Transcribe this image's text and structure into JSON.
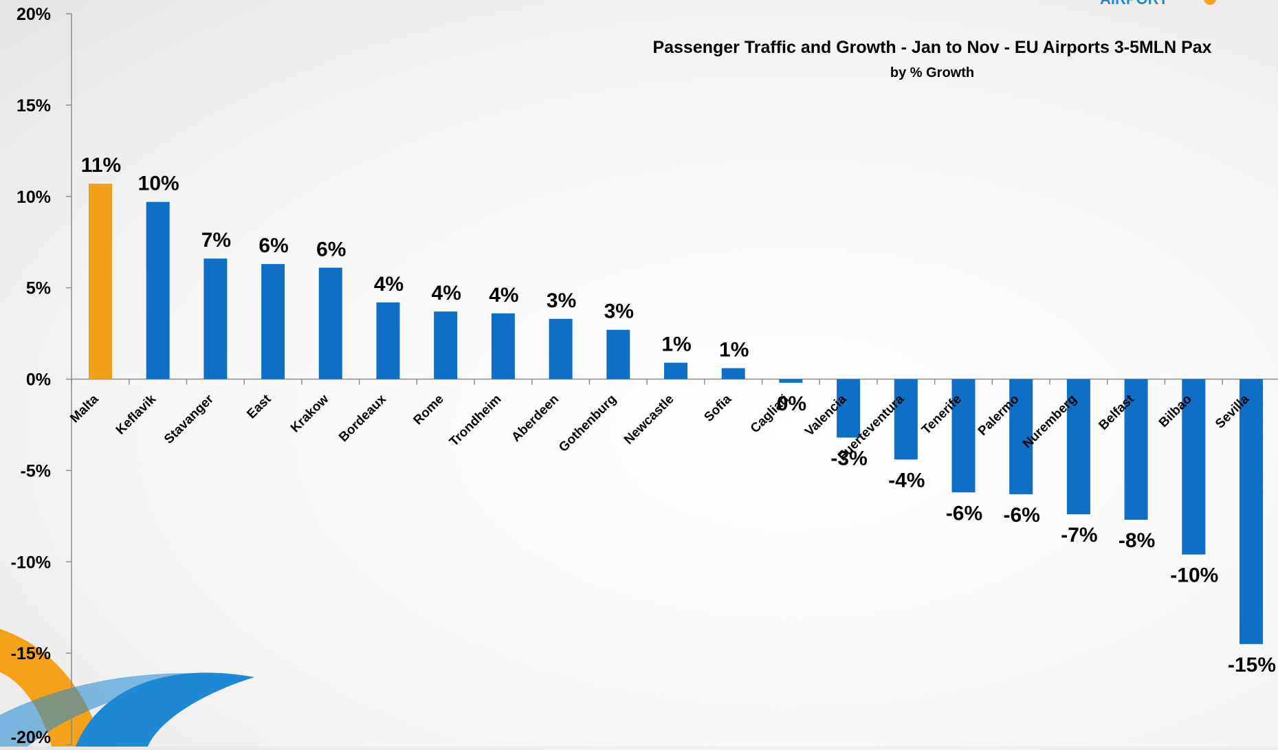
{
  "chart_data": {
    "type": "bar",
    "title": "Passenger Traffic and Growth - Jan to Nov - EU Airports  3-5MLN Pax",
    "subtitle": "by % Growth",
    "xlabel": "",
    "ylabel": "",
    "ylim": [
      -20,
      20
    ],
    "yticks": [
      20,
      15,
      10,
      5,
      0,
      -5,
      -10,
      -15,
      -20
    ],
    "ytick_labels": [
      "20%",
      "15%",
      "10%",
      "5%",
      "0%",
      "-5%",
      "-10%",
      "-15%",
      "-20%"
    ],
    "categories": [
      "Malta",
      "Keflavik",
      "Stavanger",
      "East",
      "Krakow",
      "Bordeaux",
      "Rome",
      "Trondheim",
      "Aberdeen",
      "Gothenburg",
      "Newcastle",
      "Sofia",
      "Cagliari",
      "Valencia",
      "Fuerteventura",
      "Tenerife",
      "Palermo",
      "Nuremberg",
      "Belfast",
      "Bilbao",
      "Sevilla"
    ],
    "values": [
      10.7,
      9.7,
      6.6,
      6.3,
      6.1,
      4.2,
      3.7,
      3.6,
      3.3,
      2.7,
      0.9,
      0.6,
      -0.2,
      -3.2,
      -4.4,
      -6.2,
      -6.3,
      -7.4,
      -7.7,
      -9.6,
      -14.5
    ],
    "data_labels": [
      "11%",
      "10%",
      "7%",
      "6%",
      "6%",
      "4%",
      "4%",
      "4%",
      "3%",
      "3%",
      "1%",
      "1%",
      "0%",
      "-3%",
      "-4%",
      "-6%",
      "-6%",
      "-7%",
      "-8%",
      "-10%",
      "-15%"
    ],
    "colors": {
      "highlight": "#F0A01A",
      "bar": "#0F6FC6",
      "axis": "#8C8C8C"
    },
    "highlight_index": 0,
    "grid": false,
    "legend": "none"
  },
  "decor": {
    "logo_text": "AIRPORT",
    "swoosh_orange": "#F5A21B",
    "swoosh_blue": "#1E88D3"
  }
}
